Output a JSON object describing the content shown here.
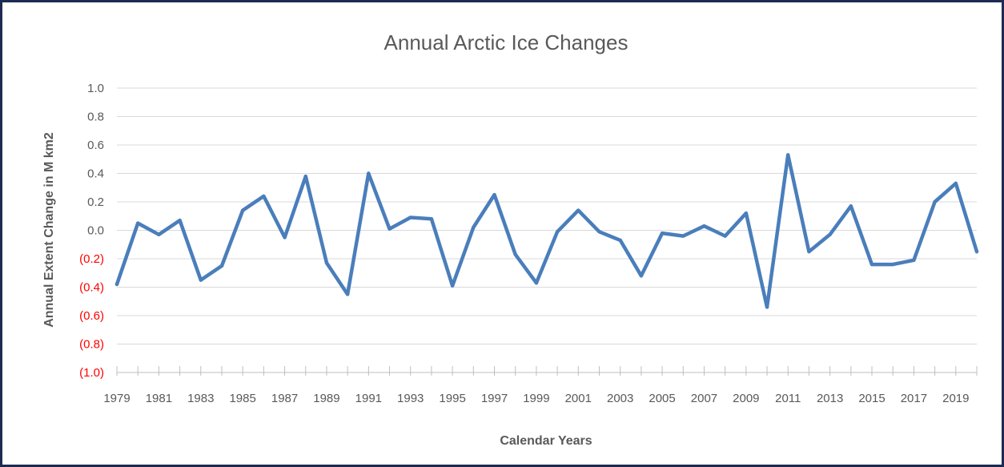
{
  "chart_data": {
    "type": "line",
    "title": "Annual Arctic Ice Changes",
    "xlabel": "Calendar Years",
    "ylabel": "Annual Extent Change in M km2",
    "ylim": [
      -1.0,
      1.0
    ],
    "yticks": [
      1.0,
      0.8,
      0.6,
      0.4,
      0.2,
      0.0,
      -0.2,
      -0.4,
      -0.6,
      -0.8,
      -1.0
    ],
    "ytick_labels": [
      "1.0",
      "0.8",
      "0.6",
      "0.4",
      "0.2",
      "0.0",
      "(0.2)",
      "(0.4)",
      "(0.6)",
      "(0.8)",
      "(1.0)"
    ],
    "negative_label_color": "#ff0000",
    "line_color": "#4a7ebb",
    "grid": true,
    "legend": "none",
    "xtick_labels": [
      "1979",
      "1981",
      "1983",
      "1985",
      "1987",
      "1989",
      "1991",
      "1993",
      "1995",
      "1997",
      "1999",
      "2001",
      "2003",
      "2005",
      "2007",
      "2009",
      "2011",
      "2013",
      "2015",
      "2017",
      "2019"
    ],
    "x": [
      1979,
      1980,
      1981,
      1982,
      1983,
      1984,
      1985,
      1986,
      1987,
      1988,
      1989,
      1990,
      1991,
      1992,
      1993,
      1994,
      1995,
      1996,
      1997,
      1998,
      1999,
      2000,
      2001,
      2002,
      2003,
      2004,
      2005,
      2006,
      2007,
      2008,
      2009,
      2010,
      2011,
      2012,
      2013,
      2014,
      2015,
      2016,
      2017,
      2018,
      2019,
      2020
    ],
    "series": [
      {
        "values": [
          -0.38,
          0.05,
          -0.03,
          0.07,
          -0.35,
          -0.25,
          0.14,
          0.24,
          -0.05,
          0.38,
          -0.23,
          -0.45,
          0.4,
          0.01,
          0.09,
          0.08,
          -0.39,
          0.02,
          0.25,
          -0.17,
          -0.37,
          -0.01,
          0.14,
          -0.01,
          -0.07,
          -0.32,
          -0.02,
          -0.04,
          0.03,
          -0.04,
          0.12,
          -0.54,
          0.53,
          -0.15,
          -0.03,
          0.17,
          -0.24,
          -0.24,
          -0.21,
          0.2,
          0.33,
          -0.15
        ]
      }
    ]
  }
}
